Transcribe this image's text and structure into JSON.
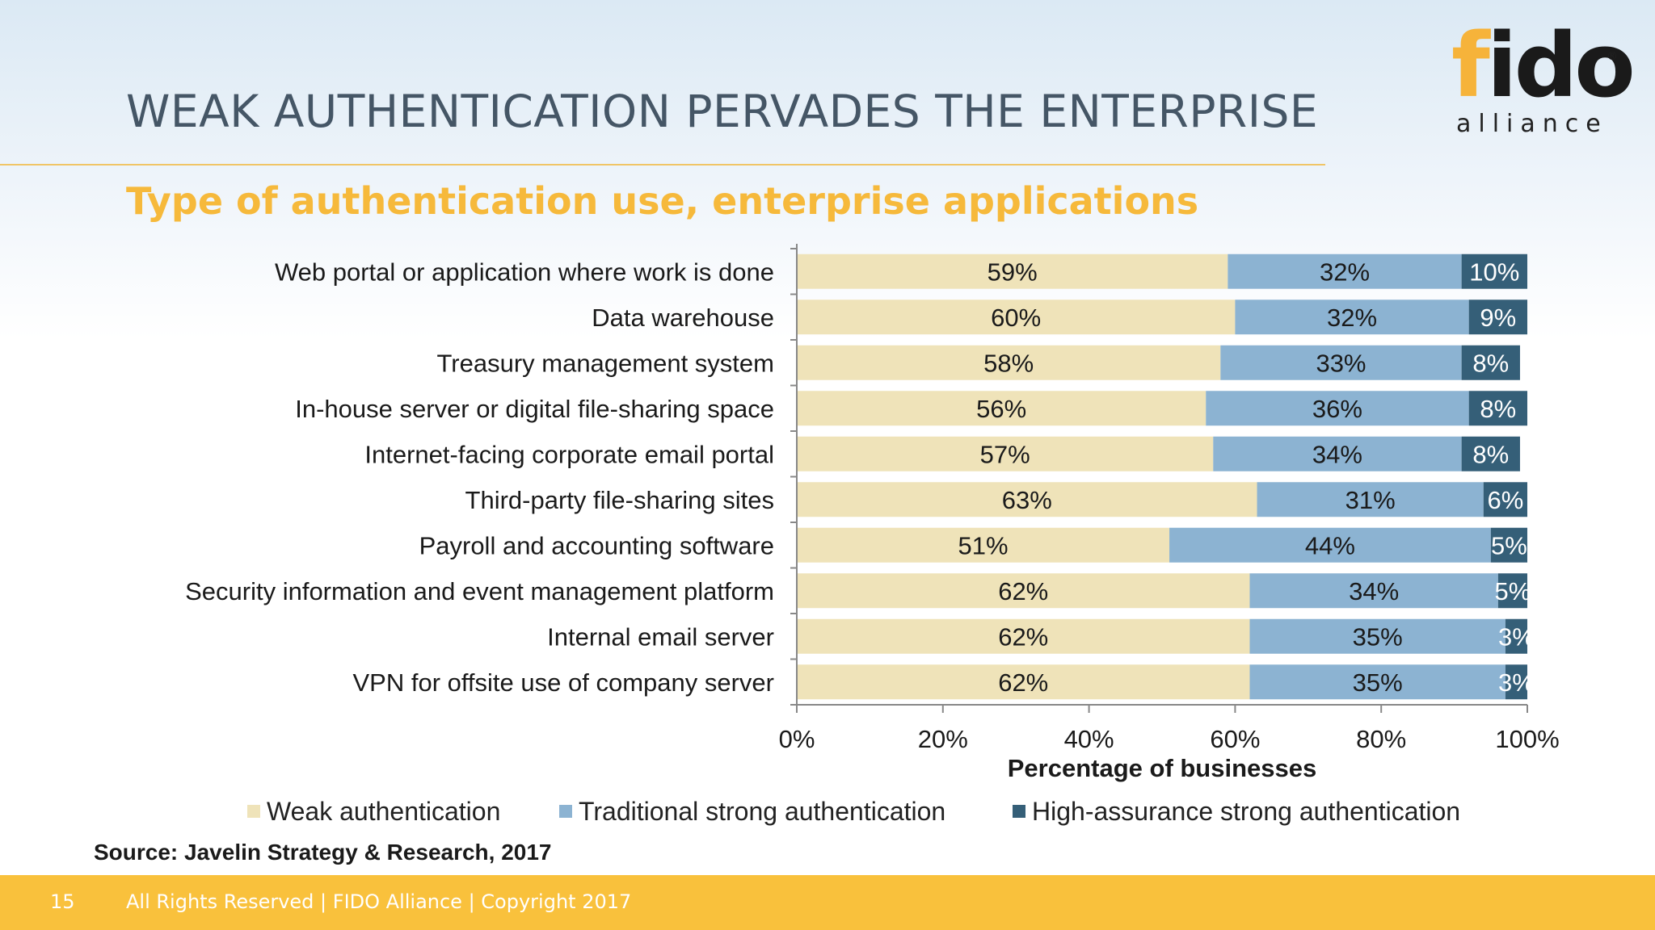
{
  "slide": {
    "title": "WEAK AUTHENTICATION PERVADES THE ENTERPRISE",
    "subtitle": "Type of authentication use, enterprise applications",
    "source": "Source: Javelin Strategy & Research, 2017"
  },
  "logo": {
    "word_f": "f",
    "word_rest": "ido",
    "sub": "alliance",
    "reg": "®"
  },
  "footer": {
    "page_number": "15",
    "text": "All Rights Reserved | FIDO Alliance | Copyright 2017"
  },
  "colors": {
    "weak": "#efe3b9",
    "traditional": "#8cb3d2",
    "high": "#355f78",
    "accent": "#f6b93b",
    "footer": "#f9c13c"
  },
  "chart_data": {
    "type": "bar",
    "orientation": "horizontal",
    "stacked": true,
    "categories": [
      "Web portal or application where work is done",
      "Data warehouse",
      "Treasury management system",
      "In-house server or digital file-sharing space",
      "Internet-facing corporate email portal",
      "Third-party file-sharing sites",
      "Payroll and accounting software",
      "Security information and event management platform",
      "Internal email server",
      "VPN for offsite use of company server"
    ],
    "series": [
      {
        "name": "Weak authentication",
        "values": [
          59,
          60,
          58,
          56,
          57,
          63,
          51,
          62,
          62,
          62
        ],
        "labels": [
          "59%",
          "60%",
          "58%",
          "56%",
          "57%",
          "63%",
          "51%",
          "62%",
          "62%",
          "62%"
        ]
      },
      {
        "name": "Traditional strong authentication",
        "values": [
          32,
          32,
          33,
          36,
          34,
          31,
          44,
          34,
          35,
          35
        ],
        "labels": [
          "32%",
          "32%",
          "33%",
          "36%",
          "34%",
          "31%",
          "44%",
          "34%",
          "35%",
          "35%"
        ]
      },
      {
        "name": "High-assurance strong authentication",
        "values": [
          10,
          9,
          8,
          8,
          8,
          6,
          5,
          5,
          3,
          3
        ],
        "labels": [
          "10%",
          "9%",
          "8%",
          "8%",
          "8%",
          "6%",
          "5%",
          "5%",
          "3%",
          "3%"
        ]
      }
    ],
    "xlabel": "Percentage of businesses",
    "ylabel": "",
    "xlim": [
      0,
      100
    ],
    "xticks": [
      "0%",
      "20%",
      "40%",
      "60%",
      "80%",
      "100%"
    ],
    "grid": false,
    "legend_position": "bottom"
  }
}
